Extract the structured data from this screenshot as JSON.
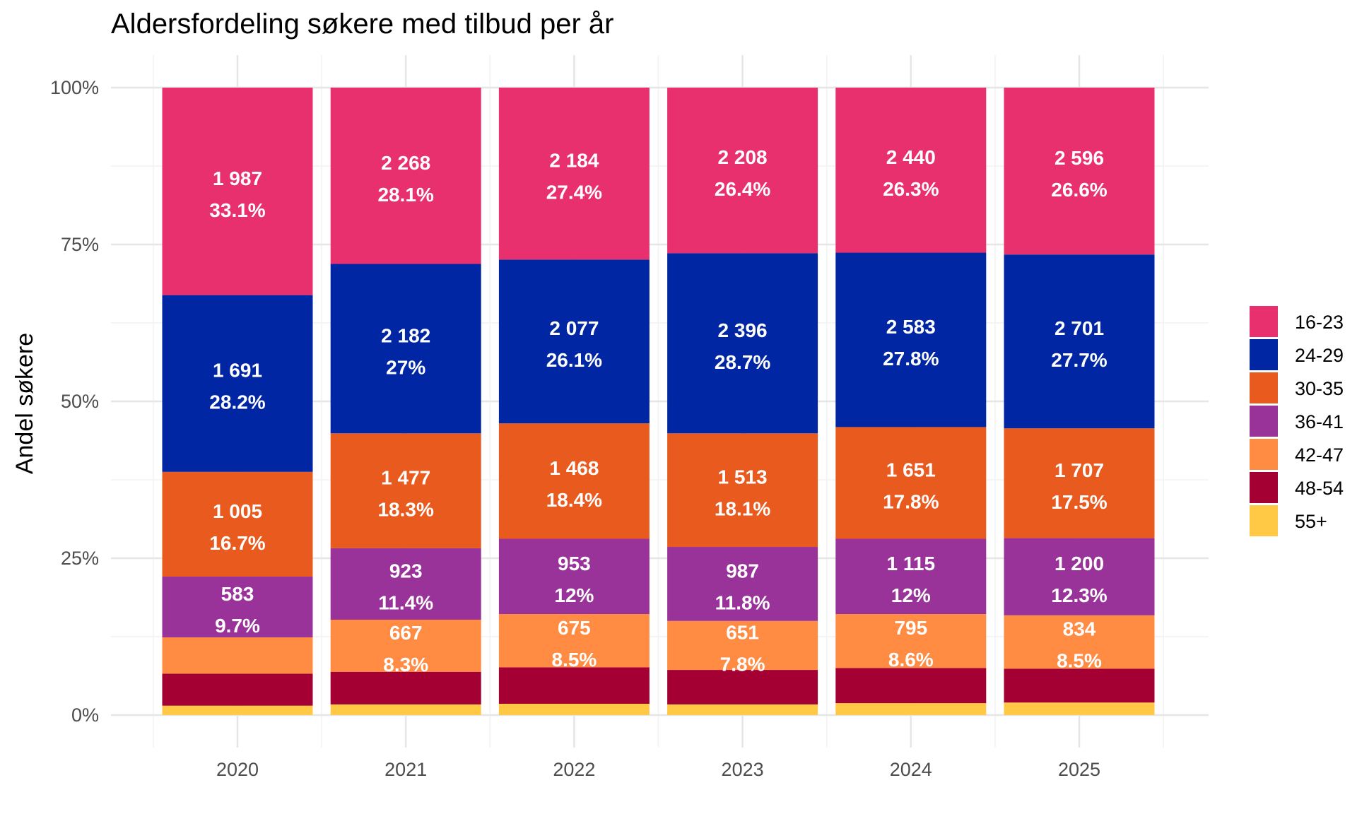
{
  "chart_data": {
    "type": "bar",
    "stacked": true,
    "percent": true,
    "title": "Aldersfordeling søkere med tilbud per år",
    "xlabel": "",
    "ylabel": "Andel søkere",
    "ylim": [
      0,
      1
    ],
    "yticks": [
      {
        "value": 0,
        "label": "0%"
      },
      {
        "value": 0.25,
        "label": "25%"
      },
      {
        "value": 0.5,
        "label": "50%"
      },
      {
        "value": 0.75,
        "label": "75%"
      },
      {
        "value": 1.0,
        "label": "100%"
      }
    ],
    "categories": [
      "2020",
      "2021",
      "2022",
      "2023",
      "2024",
      "2025"
    ],
    "grid": true,
    "legend_position": "right",
    "series": [
      {
        "name": "16-23",
        "color": "#E8306F",
        "shares": [
          0.331,
          0.281,
          0.274,
          0.264,
          0.263,
          0.266
        ],
        "labels": [
          [
            "1 987",
            "33.1%"
          ],
          [
            "2 268",
            "28.1%"
          ],
          [
            "2 184",
            "27.4%"
          ],
          [
            "2 208",
            "26.4%"
          ],
          [
            "2 440",
            "26.3%"
          ],
          [
            "2 596",
            "26.6%"
          ]
        ]
      },
      {
        "name": "24-29",
        "color": "#0026A3",
        "shares": [
          0.282,
          0.27,
          0.261,
          0.287,
          0.278,
          0.277
        ],
        "labels": [
          [
            "1 691",
            "28.2%"
          ],
          [
            "2 182",
            "27%"
          ],
          [
            "2 077",
            "26.1%"
          ],
          [
            "2 396",
            "28.7%"
          ],
          [
            "2 583",
            "27.8%"
          ],
          [
            "2 701",
            "27.7%"
          ]
        ]
      },
      {
        "name": "30-35",
        "color": "#E85A1E",
        "shares": [
          0.167,
          0.183,
          0.184,
          0.181,
          0.178,
          0.175
        ],
        "labels": [
          [
            "1 005",
            "16.7%"
          ],
          [
            "1 477",
            "18.3%"
          ],
          [
            "1 468",
            "18.4%"
          ],
          [
            "1 513",
            "18.1%"
          ],
          [
            "1 651",
            "17.8%"
          ],
          [
            "1 707",
            "17.5%"
          ]
        ]
      },
      {
        "name": "36-41",
        "color": "#993399",
        "shares": [
          0.097,
          0.114,
          0.12,
          0.118,
          0.12,
          0.123
        ],
        "labels": [
          [
            "583",
            "9.7%"
          ],
          [
            "923",
            "11.4%"
          ],
          [
            "953",
            "12%"
          ],
          [
            "987",
            "11.8%"
          ],
          [
            "1 115",
            "12%"
          ],
          [
            "1 200",
            "12.3%"
          ]
        ]
      },
      {
        "name": "42-47",
        "color": "#FF8C42",
        "shares": [
          0.058,
          0.083,
          0.085,
          0.078,
          0.086,
          0.085
        ],
        "labels": [
          null,
          [
            "667",
            "8.3%"
          ],
          [
            "675",
            "8.5%"
          ],
          [
            "651",
            "7.8%"
          ],
          [
            "795",
            "8.6%"
          ],
          [
            "834",
            "8.5%"
          ]
        ]
      },
      {
        "name": "48-54",
        "color": "#A50034",
        "shares": [
          0.051,
          0.052,
          0.058,
          0.055,
          0.056,
          0.054
        ],
        "labels": [
          null,
          null,
          null,
          null,
          null,
          null
        ]
      },
      {
        "name": "55+",
        "color": "#FFC845",
        "shares": [
          0.015,
          0.017,
          0.018,
          0.017,
          0.019,
          0.02
        ],
        "labels": [
          null,
          null,
          null,
          null,
          null,
          null
        ]
      }
    ]
  }
}
